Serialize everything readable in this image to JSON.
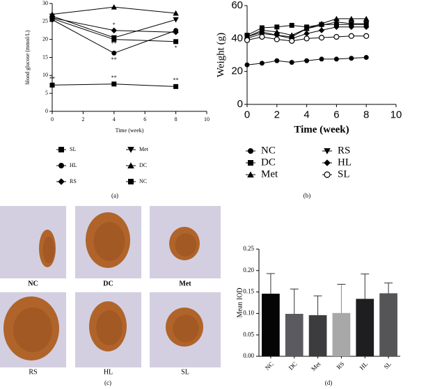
{
  "chart_data": [
    {
      "type": "line",
      "xlabel": "Time (week)",
      "ylabel": "blood glucose (mmol/L)",
      "caption": "(a)",
      "x": [
        0,
        4,
        8
      ],
      "xlim": [
        0,
        10
      ],
      "xticks": [
        0,
        2,
        4,
        6,
        8,
        10
      ],
      "ylim": [
        0,
        30
      ],
      "yticks": [
        0,
        5,
        10,
        15,
        20,
        25,
        30
      ],
      "series": [
        {
          "name": "SL",
          "color": "#000000",
          "marker": "square",
          "values": [
            7.3,
            7.6,
            6.9
          ]
        },
        {
          "name": "HL",
          "color": "#000000",
          "marker": "circle",
          "values": [
            25.5,
            16.2,
            22.5
          ]
        },
        {
          "name": "RS",
          "color": "#000000",
          "marker": "diamond",
          "values": [
            26,
            22.5,
            22
          ]
        },
        {
          "name": "Met",
          "color": "#000000",
          "marker": "triangle-down",
          "values": [
            26.5,
            20.5,
            25.5
          ]
        },
        {
          "name": "DC",
          "color": "#000000",
          "marker": "triangle-up",
          "values": [
            27,
            29,
            27.3
          ]
        },
        {
          "name": "NC",
          "color": "#000000",
          "marker": "square",
          "values": [
            25.8,
            20,
            19.4
          ]
        }
      ],
      "annotations": [
        {
          "text": "**",
          "x": 0,
          "y": 9
        },
        {
          "text": "**",
          "x": 4,
          "y": 9.3
        },
        {
          "text": "**",
          "x": 8,
          "y": 8.6
        },
        {
          "text": "*",
          "x": 4,
          "y": 24
        },
        {
          "text": "*",
          "x": 4,
          "y": 21.8
        },
        {
          "text": "**",
          "x": 4,
          "y": 18.7
        },
        {
          "text": "**",
          "x": 4,
          "y": 14.3
        },
        {
          "text": "*",
          "x": 8,
          "y": 17.6
        }
      ]
    },
    {
      "type": "line",
      "xlabel": "Time (week)",
      "ylabel": "Weight (g)",
      "caption": "(b)",
      "x": [
        0,
        1,
        2,
        3,
        4,
        5,
        6,
        7,
        8
      ],
      "xlim": [
        0,
        10
      ],
      "xticks": [
        0,
        2,
        4,
        6,
        8,
        10
      ],
      "ylim": [
        0,
        60
      ],
      "yticks": [
        0,
        20,
        40,
        60
      ],
      "series": [
        {
          "name": "NC",
          "color": "#000000",
          "marker": "circle",
          "values": [
            24,
            25,
            26.5,
            25.5,
            26.5,
            27.5,
            27.5,
            28,
            28.5
          ]
        },
        {
          "name": "DC",
          "color": "#000000",
          "marker": "square",
          "values": [
            42,
            46.5,
            47,
            48,
            47,
            48.5,
            48.5,
            48.5,
            48.5
          ]
        },
        {
          "name": "Met",
          "color": "#000000",
          "marker": "triangle-up",
          "values": [
            41,
            45,
            44,
            42,
            46,
            49,
            52,
            52,
            52
          ]
        },
        {
          "name": "RS",
          "color": "#000000",
          "marker": "triangle-down",
          "values": [
            41,
            44,
            42,
            41,
            46,
            48,
            50,
            49,
            49
          ]
        },
        {
          "name": "HL",
          "color": "#000000",
          "marker": "diamond",
          "values": [
            40,
            43,
            42,
            40,
            43,
            45,
            47,
            47,
            47
          ]
        },
        {
          "name": "SL",
          "color": "#000000",
          "marker": "circle-open",
          "values": [
            39,
            41,
            39.5,
            38.5,
            40,
            40.5,
            41,
            41.5,
            41.5
          ]
        }
      ]
    },
    {
      "type": "bar",
      "ylabel": "Mean IOD",
      "caption": "(d)",
      "categories": [
        "NC",
        "DC",
        "Met",
        "RS",
        "HL",
        "SL"
      ],
      "values": [
        0.146,
        0.099,
        0.096,
        0.101,
        0.134,
        0.147
      ],
      "errors": [
        0.047,
        0.058,
        0.045,
        0.067,
        0.058,
        0.024
      ],
      "colors": [
        "#050505",
        "#5a5a60",
        "#3c3c3e",
        "#a8a8a8",
        "#1e1e20",
        "#555558"
      ],
      "ylim": [
        0,
        0.25
      ],
      "yticks": [
        {
          "value": 0,
          "label": "0.00"
        },
        0.05,
        {
          "value": 0.1,
          "label": "0.10"
        },
        0.15,
        {
          "value": 0.2,
          "label": "0.20"
        },
        0.25
      ]
    }
  ],
  "images": {
    "caption": "(c)",
    "labels": [
      "NC",
      "DC",
      "Met",
      "RS",
      "HL",
      "SL"
    ]
  }
}
